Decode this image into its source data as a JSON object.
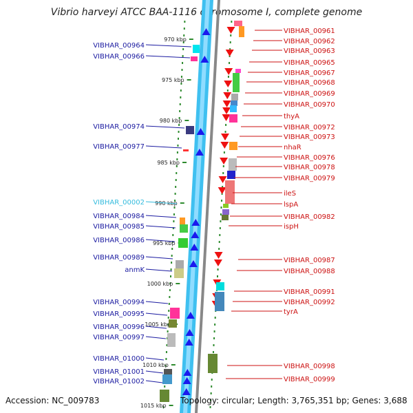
{
  "title": "Vibrio harveyi ATCC BAA-1116 chromosome I, complete genome",
  "footer": {
    "accession": "Accession: NC_009783",
    "topology": "Topology: circular; Length: 3,765,351 bp; Genes: 3,688"
  },
  "colors": {
    "left_label": "#1a1aa0",
    "left_label_highlight": "#33bbdd",
    "right_label": "#cc1111",
    "forward_strand": "#1a1aee",
    "reverse_strand": "#ee1111"
  },
  "kbp_marks": [
    "970 kbp",
    "975 kbp",
    "980 kbp",
    "985 kbp",
    "990 kbp",
    "995 kbp",
    "1000 kbp",
    "1005 kbp",
    "1010 kbp",
    "1015 kbp"
  ],
  "left_genes": [
    {
      "label": "VIBHAR_00964",
      "highlight": false
    },
    {
      "label": "VIBHAR_00966",
      "highlight": false
    },
    {
      "label": "VIBHAR_00974",
      "highlight": false
    },
    {
      "label": "VIBHAR_00977",
      "highlight": false
    },
    {
      "label": "VIBHAR_00002",
      "highlight": true
    },
    {
      "label": "VIBHAR_00984",
      "highlight": false
    },
    {
      "label": "VIBHAR_00985",
      "highlight": false
    },
    {
      "label": "VIBHAR_00986",
      "highlight": false
    },
    {
      "label": "VIBHAR_00989",
      "highlight": false
    },
    {
      "label": "anmK",
      "highlight": false
    },
    {
      "label": "VIBHAR_00994",
      "highlight": false
    },
    {
      "label": "VIBHAR_00995",
      "highlight": false
    },
    {
      "label": "VIBHAR_00996",
      "highlight": false
    },
    {
      "label": "VIBHAR_00997",
      "highlight": false
    },
    {
      "label": "VIBHAR_01000",
      "highlight": false
    },
    {
      "label": "VIBHAR_01001",
      "highlight": false
    },
    {
      "label": "VIBHAR_01002",
      "highlight": false
    }
  ],
  "right_genes": [
    {
      "label": "VIBHAR_00961"
    },
    {
      "label": "VIBHAR_00962"
    },
    {
      "label": "VIBHAR_00963"
    },
    {
      "label": "VIBHAR_00965"
    },
    {
      "label": "VIBHAR_00967"
    },
    {
      "label": "VIBHAR_00968"
    },
    {
      "label": "VIBHAR_00969"
    },
    {
      "label": "VIBHAR_00970"
    },
    {
      "label": "thyA"
    },
    {
      "label": "VIBHAR_00972"
    },
    {
      "label": "VIBHAR_00973"
    },
    {
      "label": "nhaR"
    },
    {
      "label": "VIBHAR_00976"
    },
    {
      "label": "VIBHAR_00978"
    },
    {
      "label": "VIBHAR_00979"
    },
    {
      "label": "ileS"
    },
    {
      "label": "lspA"
    },
    {
      "label": "VIBHAR_00982"
    },
    {
      "label": "ispH"
    },
    {
      "label": "VIBHAR_00987"
    },
    {
      "label": "VIBHAR_00988"
    },
    {
      "label": "VIBHAR_00991"
    },
    {
      "label": "VIBHAR_00992"
    },
    {
      "label": "tyrA"
    },
    {
      "label": "VIBHAR_00998"
    },
    {
      "label": "VIBHAR_00999"
    }
  ]
}
